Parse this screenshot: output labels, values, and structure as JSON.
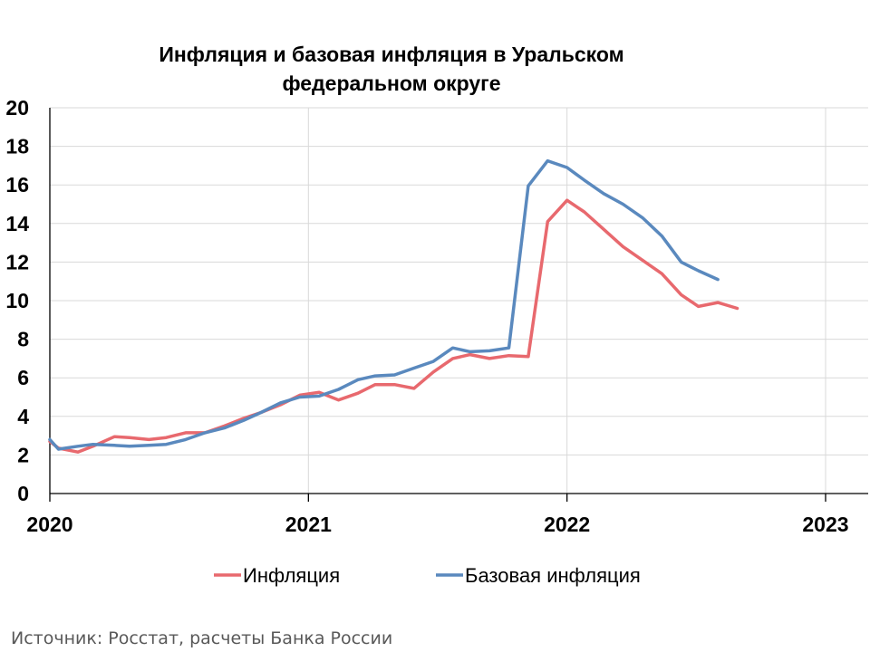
{
  "chart_data": {
    "type": "line",
    "title_lines": [
      "Инфляция и базовая инфляция в Уральском",
      "федеральном округе"
    ],
    "xlabel": "",
    "ylabel": "",
    "ylim": [
      0,
      20
    ],
    "y_ticks": [
      "0",
      "2",
      "4",
      "6",
      "8",
      "10",
      "12",
      "14",
      "16",
      "18",
      "20"
    ],
    "x_ticks": [
      "2020",
      "2021",
      "2022",
      "2023"
    ],
    "x_range": [
      0,
      36
    ],
    "grid": true,
    "legend_position": "bottom",
    "series": [
      {
        "name": "Инфляция",
        "color": "#e8696e",
        "x": [
          0,
          0.4,
          1.3,
          2,
          3,
          3.7,
          4.6,
          5.4,
          6.3,
          7.2,
          8.1,
          9,
          9.8,
          10.7,
          11.6,
          12.5,
          13.4,
          14.3,
          15.1,
          16,
          16.9,
          17.8,
          18.7,
          19.5,
          20.4,
          21.3,
          22.2,
          23.1,
          24,
          24.8,
          25.7,
          26.6,
          27.5,
          28.4,
          29.3,
          30.1,
          31,
          31.9,
          32.8,
          33.7,
          34.6,
          35.5
        ],
        "y": [
          2.7,
          2.35,
          2.15,
          2.45,
          2.95,
          2.9,
          2.8,
          2.9,
          3.15,
          3.15,
          3.5,
          3.9,
          4.2,
          4.6,
          5.1,
          5.25,
          4.85,
          5.2,
          5.65,
          5.65,
          5.45,
          6.3,
          7.0,
          7.2,
          7.0,
          7.15,
          7.1,
          14.1,
          15.2,
          14.6,
          13.7,
          12.8,
          12.1,
          11.4,
          10.3,
          9.7,
          9.9,
          9.6,
          null,
          null,
          null,
          null
        ]
      },
      {
        "name": "Базовая инфляция",
        "color": "#5a89be",
        "x": [
          0,
          0.4,
          1.3,
          2,
          3,
          3.7,
          4.6,
          5.4,
          6.3,
          7.2,
          8.1,
          9,
          9.8,
          10.7,
          11.6,
          12.5,
          13.4,
          14.3,
          15.1,
          16,
          16.9,
          17.8,
          18.7,
          19.5,
          20.4,
          21.3,
          22.2,
          23.1,
          24,
          24.8,
          25.7,
          26.6,
          27.5,
          28.4,
          29.3,
          30.1,
          31,
          31.9,
          32.8,
          33.7,
          34.6,
          35.5
        ],
        "y": [
          2.8,
          2.3,
          2.45,
          2.55,
          2.5,
          2.45,
          2.5,
          2.55,
          2.8,
          3.15,
          3.4,
          3.8,
          4.2,
          4.7,
          5.0,
          5.05,
          5.4,
          5.9,
          6.1,
          6.15,
          6.5,
          6.85,
          7.55,
          7.35,
          7.4,
          7.55,
          15.95,
          17.25,
          16.9,
          16.25,
          15.55,
          15.0,
          14.3,
          13.35,
          12.0,
          11.55,
          11.1,
          null,
          null,
          null,
          null,
          null
        ]
      }
    ],
    "source": "Источник: Росстат, расчеты Банка России"
  }
}
